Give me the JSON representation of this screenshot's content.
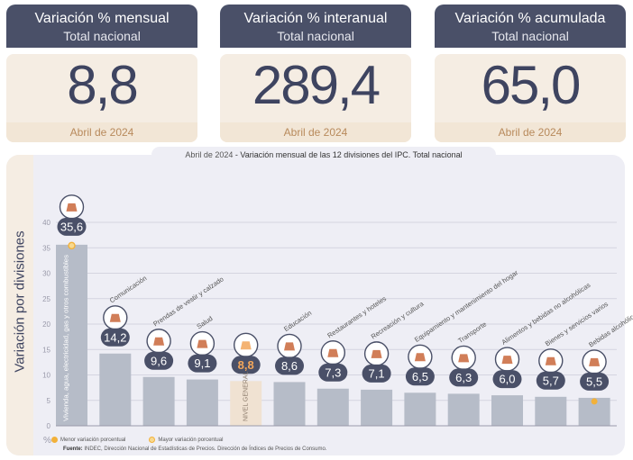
{
  "cards": [
    {
      "title": "Variación % mensual",
      "subtitle": "Total nacional",
      "value": "8,8",
      "date": "Abril de 2024"
    },
    {
      "title": "Variación % interanual",
      "subtitle": "Total nacional",
      "value": "289,4",
      "date": "Abril de 2024"
    },
    {
      "title": "Variación % acumulada",
      "subtitle": "Total nacional",
      "value": "65,0",
      "date": "Abril de 2024"
    }
  ],
  "chart_title_date": "Abril de 2024",
  "chart_title_rest": " - Variación mensual de las 12 divisiones del IPC. Total nacional",
  "legend": {
    "min": "Menor variación porcentual",
    "max": "Mayor variación porcentual"
  },
  "source_label": "Fuente:",
  "source_text": " INDEC, Dirección Nacional de Estadísticas de Precios. Dirección de Índices de Precios de Consumo.",
  "colors": {
    "bar": "#b6bcc8",
    "bar_general": "#f0e2d2",
    "bubble": "#4a5068",
    "highlight": "#f2b13a",
    "general_value": "#f2a65a",
    "axis": "#9a9aaa"
  },
  "chart_data": {
    "type": "bar",
    "ylabel": "Variación por divisiones",
    "yunit": "%",
    "ylim": [
      0,
      40
    ],
    "yticks": [
      0,
      5,
      10,
      15,
      20,
      25,
      30,
      35,
      40
    ],
    "grid": true,
    "categories": [
      {
        "label": "Vivienda, agua, electricidad, gas y otros combustibles",
        "value": 35.6,
        "display": "35,6",
        "icon": "house-utilities-icon",
        "marker": "max"
      },
      {
        "label": "Comunicación",
        "value": 14.2,
        "display": "14,2",
        "icon": "phone-icon"
      },
      {
        "label": "Prendas de vestir y calzado",
        "value": 9.6,
        "display": "9,6",
        "icon": "shirt-icon"
      },
      {
        "label": "Salud",
        "value": 9.1,
        "display": "9,1",
        "icon": "health-cross-icon"
      },
      {
        "label": "NIVEL GENERAL",
        "value": 8.8,
        "display": "8,8",
        "icon": "shopping-basket-icon",
        "general": true
      },
      {
        "label": "Educación",
        "value": 8.6,
        "display": "8,6",
        "icon": "books-icon"
      },
      {
        "label": "Restaurantes y hoteles",
        "value": 7.3,
        "display": "7,3",
        "icon": "dining-icon"
      },
      {
        "label": "Recreación y cultura",
        "value": 7.1,
        "display": "7,1",
        "icon": "beach-umbrella-icon"
      },
      {
        "label": "Equipamiento y mantenimiento del hogar",
        "value": 6.5,
        "display": "6,5",
        "icon": "washing-machine-icon"
      },
      {
        "label": "Transporte",
        "value": 6.3,
        "display": "6,3",
        "icon": "bus-icon"
      },
      {
        "label": "Alimentos y bebidas no alcohólicas",
        "value": 6.0,
        "display": "6,0",
        "icon": "food-icon"
      },
      {
        "label": "Bienes y servicios varios",
        "value": 5.7,
        "display": "5,7",
        "icon": "scissors-icon"
      },
      {
        "label": "Bebidas alcohólicas y tabaco",
        "value": 5.5,
        "display": "5,5",
        "icon": "bottle-icon",
        "marker": "min"
      }
    ]
  }
}
